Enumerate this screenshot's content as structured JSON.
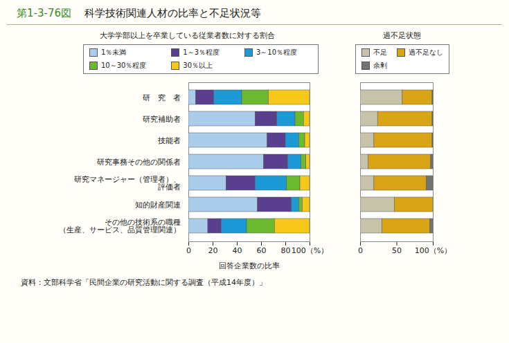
{
  "title": "第1-3-76図　科学技術関連人材の比率と不足状況等",
  "source": "資料：文部科学省「民間企業の研究活動に関する調査（平成14年度）」",
  "chart_data": [
    {
      "type": "bar",
      "orientation": "horizontal",
      "stacked": true,
      "legend": "top",
      "grid": false,
      "title": "大学学部以上を卒業している従業者数に対する割合",
      "xlabel": "回答企業数の比率",
      "categories": [
        "研　究　者",
        "研究補助者",
        "技能者",
        "研究事務その他の関係者",
        "研究マネージャー（管理者）、\n評価者",
        "知的財産関連",
        "その他の技術系の職種\n（生産、サービス、品質管理関連）"
      ],
      "series": [
        {
          "name": "1％未満",
          "color": "#a9cdea",
          "values": [
            6,
            55,
            65,
            62,
            31,
            57,
            16
          ]
        },
        {
          "name": "1～3％程度",
          "color": "#5a3f8e",
          "values": [
            15,
            18,
            15,
            20,
            24,
            28,
            11
          ]
        },
        {
          "name": "3～10％程度",
          "color": "#1c9ad6",
          "values": [
            23,
            15,
            11,
            11,
            26,
            6,
            21
          ]
        },
        {
          "name": "10～30％程度",
          "color": "#6cb82e",
          "values": [
            22,
            7,
            5,
            4,
            11,
            3,
            23
          ]
        },
        {
          "name": "30％以上",
          "color": "#f5c81a",
          "values": [
            34,
            5,
            4,
            3,
            8,
            6,
            29
          ]
        }
      ],
      "xlim": [
        0,
        100
      ],
      "xticks": [
        0,
        20,
        40,
        60,
        80,
        {
          "value": 100,
          "label": "100（%）"
        }
      ]
    },
    {
      "type": "bar",
      "orientation": "horizontal",
      "stacked": true,
      "legend": "top",
      "grid": false,
      "tick_labels": "x",
      "title": "過不足状態",
      "categories": [
        "研　究　者",
        "研究補助者",
        "技能者",
        "研究事務その他の関係者",
        "研究マネージャー（管理者）、\n評価者",
        "知的財産関連",
        "その他の技術系の職種\n（生産、サービス、品質管理関連）"
      ],
      "series": [
        {
          "name": "不足",
          "color": "#c6c3aa",
          "values": [
            58,
            24,
            19,
            11,
            19,
            47,
            30
          ]
        },
        {
          "name": "過不足なし",
          "color": "#d9a516",
          "values": [
            41,
            75,
            80,
            86,
            72,
            53,
            66
          ]
        },
        {
          "name": "余剰",
          "color": "#737373",
          "values": [
            1,
            1,
            1,
            3,
            9,
            0,
            4
          ]
        }
      ],
      "xlim": [
        0,
        100
      ],
      "xticks": [
        0,
        50,
        {
          "value": 100,
          "label": "100（%）"
        }
      ]
    }
  ]
}
